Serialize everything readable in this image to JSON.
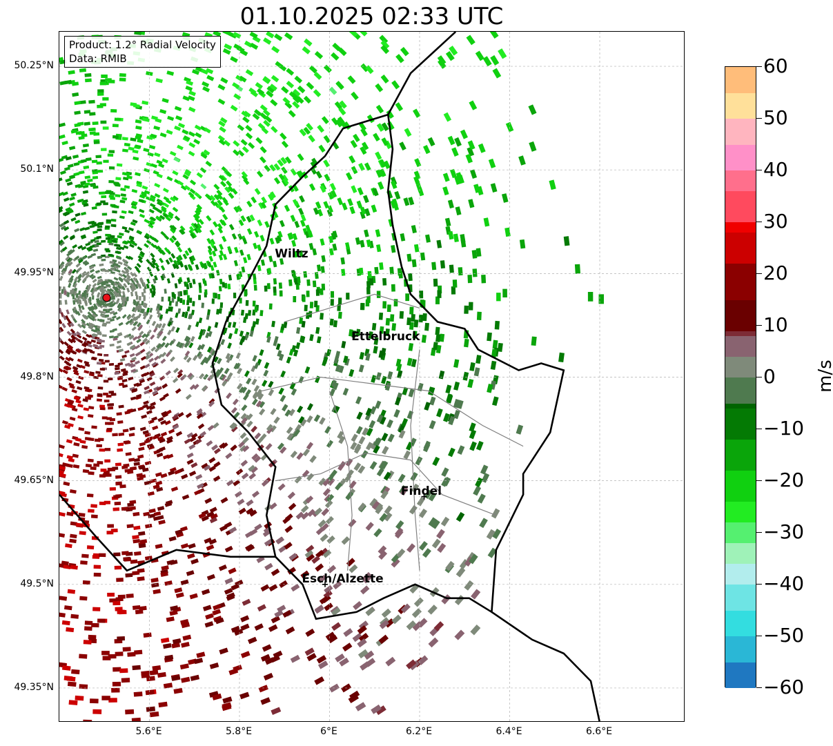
{
  "title": "01.10.2025 02:33 UTC",
  "info": {
    "product": "Product: 1.2° Radial Velocity",
    "data_source": "Data: RMIB"
  },
  "map": {
    "extent": {
      "lon": [
        5.4,
        6.79
      ],
      "lat": [
        49.3,
        50.3
      ]
    },
    "gridlines": true,
    "x_ticks": [
      {
        "lon": 5.6,
        "label": "5.6°E"
      },
      {
        "lon": 5.8,
        "label": "5.8°E"
      },
      {
        "lon": 6.0,
        "label": "6°E"
      },
      {
        "lon": 6.2,
        "label": "6.2°E"
      },
      {
        "lon": 6.4,
        "label": "6.4°E"
      },
      {
        "lon": 6.6,
        "label": "6.6°E"
      }
    ],
    "y_ticks": [
      {
        "lat": 50.25,
        "label": "50.25°N"
      },
      {
        "lat": 50.1,
        "label": "50.1°N"
      },
      {
        "lat": 49.95,
        "label": "49.95°N"
      },
      {
        "lat": 49.8,
        "label": "49.8°N"
      },
      {
        "lat": 49.65,
        "label": "49.65°N"
      },
      {
        "lat": 49.5,
        "label": "49.5°N"
      },
      {
        "lat": 49.35,
        "label": "49.35°N"
      }
    ],
    "radar_site": {
      "lon": 5.505,
      "lat": 49.915,
      "color": "#e8121a"
    },
    "cities": [
      {
        "name": "Wiltz",
        "lon": 5.94,
        "lat": 49.96,
        "label_lon": 5.88,
        "label_lat": 49.975,
        "marker": false
      },
      {
        "name": "Ettelbruck",
        "lon": 6.1,
        "lat": 49.85,
        "label_lon": 6.05,
        "label_lat": 49.855,
        "marker": false
      },
      {
        "name": "Findel",
        "lon": 6.21,
        "lat": 49.627,
        "label_lon": 6.16,
        "label_lat": 49.632,
        "marker": true
      },
      {
        "name": "Esch/Alzette",
        "lon": 5.99,
        "lat": 49.5,
        "label_lon": 5.94,
        "label_lat": 49.505,
        "marker": true
      }
    ],
    "colors": {
      "border": "#000000",
      "canton": "#808080",
      "grid": "#b0b0b0"
    }
  },
  "colorbar": {
    "unit": "m/s",
    "vmin": -60,
    "vmax": 60,
    "ticks": [
      {
        "value": 60,
        "label": "60"
      },
      {
        "value": 50,
        "label": "50"
      },
      {
        "value": 40,
        "label": "40"
      },
      {
        "value": 30,
        "label": "30"
      },
      {
        "value": 20,
        "label": "20"
      },
      {
        "value": 10,
        "label": "10"
      },
      {
        "value": 0,
        "label": "0"
      },
      {
        "value": -10,
        "label": "−10"
      },
      {
        "value": -20,
        "label": "−20"
      },
      {
        "value": -30,
        "label": "−30"
      },
      {
        "value": -40,
        "label": "−40"
      },
      {
        "value": -50,
        "label": "−50"
      },
      {
        "value": -60,
        "label": "−60"
      }
    ],
    "stops": [
      {
        "value": -60,
        "color": "#1f78c1"
      },
      {
        "value": -55,
        "color": "#2ab7d6"
      },
      {
        "value": -50,
        "color": "#33dde0"
      },
      {
        "value": -45,
        "color": "#6ee4e4"
      },
      {
        "value": -40,
        "color": "#b2eded"
      },
      {
        "value": -36,
        "color": "#9ff2b8"
      },
      {
        "value": -32,
        "color": "#55f070"
      },
      {
        "value": -28,
        "color": "#22ec22"
      },
      {
        "value": -24,
        "color": "#10d010"
      },
      {
        "value": -18,
        "color": "#0aa50a"
      },
      {
        "value": -12,
        "color": "#047a04"
      },
      {
        "value": -6,
        "color": "#006400"
      },
      {
        "value": -5,
        "color": "#4f7a4f"
      },
      {
        "value": 0,
        "color": "#7f8a7a"
      },
      {
        "value": 4,
        "color": "#896370"
      },
      {
        "value": 8,
        "color": "#7d2c36"
      },
      {
        "value": 9,
        "color": "#6a0000"
      },
      {
        "value": 15,
        "color": "#8b0000"
      },
      {
        "value": 22,
        "color": "#cc0000"
      },
      {
        "value": 28,
        "color": "#f00000"
      },
      {
        "value": 30,
        "color": "#ff4a5e"
      },
      {
        "value": 36,
        "color": "#ff6f8c"
      },
      {
        "value": 40,
        "color": "#ff90c8"
      },
      {
        "value": 45,
        "color": "#ffb5bf"
      },
      {
        "value": 50,
        "color": "#ffe09a"
      },
      {
        "value": 55,
        "color": "#ffbd7a"
      },
      {
        "value": 60,
        "color": "#ff9955"
      }
    ]
  }
}
